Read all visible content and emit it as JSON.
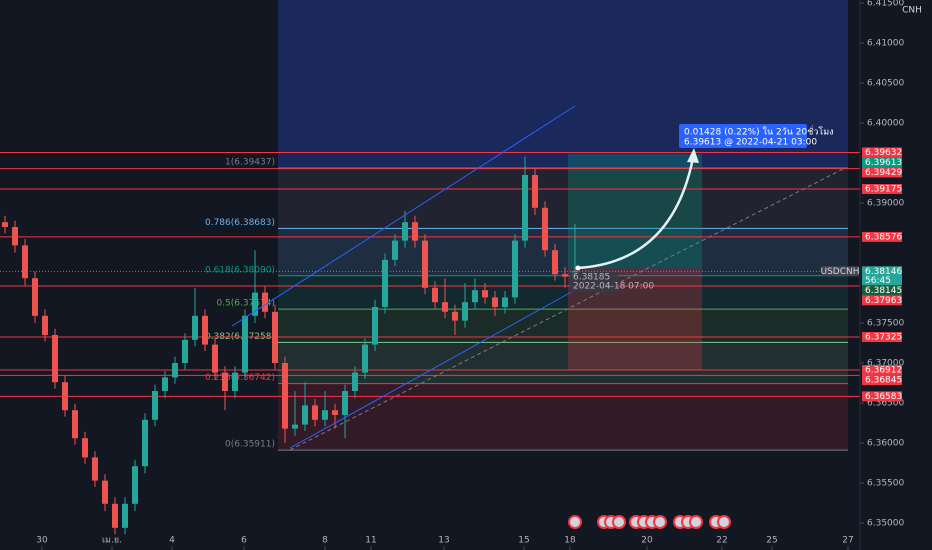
{
  "chart_data": {
    "type": "candlestick",
    "symbol": "USDCNH",
    "currency": "CNH",
    "countdown": "56:45",
    "last_price": 6.38146,
    "up_color": "#26a69a",
    "down_color": "#ef5350",
    "x": [
      0.5,
      1.5,
      2.5,
      3.5,
      4.5,
      5.5,
      6.5,
      7.5,
      8.5,
      9.5,
      10.5,
      11.5,
      12.5,
      13.5,
      14.5,
      15.5,
      16.5,
      17.5,
      18.5,
      19.5,
      20.5,
      21.5,
      22.5,
      23.5,
      24.5,
      25.5,
      26.5,
      27.5,
      28.5,
      29.5,
      30.5,
      31.5,
      32.5,
      33.5,
      34.5,
      35.5,
      36.5,
      37.5,
      38.5,
      39.5,
      40.5,
      41.5,
      42.5,
      43.5,
      44.5,
      45.5,
      46.5,
      47.5,
      48.5,
      49.5,
      50.5,
      51.5,
      52.5,
      53.5,
      54.5,
      55.5,
      56.5,
      57.5
    ],
    "open": [
      6.3876,
      6.387,
      6.3847,
      6.3806,
      6.3759,
      6.3735,
      6.3676,
      6.3641,
      6.3606,
      6.3582,
      6.3553,
      6.3524,
      6.3494,
      6.3524,
      6.3571,
      6.3629,
      6.3665,
      6.3682,
      6.37,
      6.3729,
      6.3759,
      6.3723,
      6.3688,
      6.3665,
      6.3688,
      6.3759,
      6.3788,
      6.3764,
      6.37,
      6.3618,
      6.3623,
      6.3647,
      6.3629,
      6.3641,
      6.3635,
      6.3665,
      6.3688,
      6.3723,
      6.377,
      6.3829,
      6.3853,
      6.3876,
      6.3853,
      6.3794,
      6.3776,
      6.3764,
      6.3753,
      6.3776,
      6.3791,
      6.3782,
      6.377,
      6.3782,
      6.3853,
      6.3935,
      6.3894,
      6.3841,
      6.3811,
      6.3808
    ],
    "high": [
      6.3884,
      6.3878,
      6.3855,
      6.3814,
      6.3767,
      6.3743,
      6.3684,
      6.3649,
      6.3614,
      6.359,
      6.3561,
      6.3532,
      6.3532,
      6.3579,
      6.3637,
      6.3673,
      6.369,
      6.3708,
      6.3737,
      6.3794,
      6.3767,
      6.3731,
      6.3696,
      6.3696,
      6.3767,
      6.3841,
      6.3796,
      6.3773,
      6.3708,
      6.3665,
      6.3676,
      6.3655,
      6.3665,
      6.3649,
      6.3673,
      6.3696,
      6.3731,
      6.3779,
      6.3837,
      6.3861,
      6.389,
      6.3884,
      6.3861,
      6.3802,
      6.3806,
      6.3773,
      6.38,
      6.3806,
      6.38,
      6.379,
      6.379,
      6.3861,
      6.3958,
      6.3943,
      6.3902,
      6.3849,
      6.382,
      6.3874
    ],
    "low": [
      6.3862,
      6.3838,
      6.3797,
      6.375,
      6.3727,
      6.3668,
      6.3633,
      6.3598,
      6.3574,
      6.3545,
      6.3515,
      6.3486,
      6.3486,
      6.3515,
      6.3562,
      6.3621,
      6.3656,
      6.3674,
      6.3692,
      6.3721,
      6.3715,
      6.368,
      6.3641,
      6.3656,
      6.368,
      6.375,
      6.3756,
      6.3692,
      6.36,
      6.3609,
      6.3615,
      6.3621,
      6.3621,
      6.3618,
      6.3606,
      6.3656,
      6.368,
      6.3715,
      6.3762,
      6.3821,
      6.3844,
      6.3844,
      6.3786,
      6.3768,
      6.3756,
      6.3735,
      6.3744,
      6.3768,
      6.3774,
      6.3759,
      6.3762,
      6.3774,
      6.3844,
      6.3885,
      6.3833,
      6.3803,
      6.3794,
      6.38
    ],
    "close": [
      6.387,
      6.3847,
      6.3806,
      6.3759,
      6.3735,
      6.3676,
      6.3641,
      6.3606,
      6.3582,
      6.3553,
      6.3524,
      6.3494,
      6.3524,
      6.3571,
      6.3629,
      6.3665,
      6.3682,
      6.37,
      6.3729,
      6.3759,
      6.3723,
      6.3688,
      6.3665,
      6.3688,
      6.3759,
      6.3788,
      6.3764,
      6.37,
      6.3618,
      6.3623,
      6.3647,
      6.3629,
      6.3641,
      6.3635,
      6.3665,
      6.3688,
      6.3723,
      6.377,
      6.3829,
      6.3853,
      6.3876,
      6.3853,
      6.3794,
      6.3776,
      6.3764,
      6.3753,
      6.3776,
      6.3791,
      6.3782,
      6.377,
      6.3782,
      6.3853,
      6.3935,
      6.3894,
      6.3841,
      6.3811,
      6.3808,
      6.3815
    ],
    "xlim": [
      0,
      86
    ],
    "xticks": [
      {
        "value": 4.2,
        "label": "30"
      },
      {
        "value": 11.2,
        "label": "เม.ย."
      },
      {
        "value": 17.2,
        "label": "4"
      },
      {
        "value": 24.4,
        "label": "6"
      },
      {
        "value": 32.5,
        "label": "8"
      },
      {
        "value": 37.1,
        "label": "11"
      },
      {
        "value": 44.4,
        "label": "13"
      },
      {
        "value": 52.4,
        "label": "15"
      },
      {
        "value": 57.0,
        "label": "18"
      },
      {
        "value": 64.7,
        "label": "20"
      },
      {
        "value": 72.2,
        "label": "22"
      },
      {
        "value": 77.2,
        "label": "25"
      },
      {
        "value": 84.8,
        "label": "27"
      }
    ],
    "ylim": [
      6.346625,
      6.415375
    ],
    "yticks": [
      {
        "value": 6.415,
        "label": "6.41500"
      },
      {
        "value": 6.41,
        "label": "6.41000"
      },
      {
        "value": 6.405,
        "label": "6.40500"
      },
      {
        "value": 6.4,
        "label": "6.40000"
      },
      {
        "value": 6.39,
        "label": "6.39000"
      },
      {
        "value": 6.375,
        "label": "6.37500"
      },
      {
        "value": 6.37,
        "label": "6.37000"
      },
      {
        "value": 6.365,
        "label": "6.36500"
      },
      {
        "value": 6.36,
        "label": "6.36000"
      },
      {
        "value": 6.355,
        "label": "6.35500"
      },
      {
        "value": 6.35,
        "label": "6.35000"
      }
    ],
    "line_color": "#f23645",
    "horizontal_lines": [
      6.39632,
      6.39429,
      6.39175,
      6.38576,
      6.37963,
      6.37325,
      6.36912,
      6.36845,
      6.36583
    ],
    "extra_labels": [
      {
        "value": 6.39613,
        "label": "6.39613",
        "color": "#089981"
      },
      {
        "value": 6.38145,
        "label": "6.38145",
        "color": "#1e5c3a"
      }
    ],
    "fib_levels": [
      {
        "value": 6.39437,
        "label": "1(6.39437)",
        "color": "#787b86"
      },
      {
        "value": 6.38683,
        "label": "0.786(6.38683)",
        "color": "#64b5f6"
      },
      {
        "value": 6.3809,
        "label": "0.618(6.38090)",
        "color": "#089981"
      },
      {
        "value": 6.37674,
        "label": "0.5(6.37674)",
        "color": "#4caf50"
      },
      {
        "value": 6.37258,
        "label": "0.382(6.37258)",
        "color": "#81c784"
      },
      {
        "value": 6.36742,
        "label": "0.236(6.36742)",
        "color": "#f23645"
      },
      {
        "value": 6.35911,
        "label": "0(6.35911)",
        "color": "#787b86"
      }
    ],
    "position": {
      "entry": 6.38185,
      "target": 6.39613,
      "stop": 6.36913,
      "entry_label": "6.38185",
      "entry_time": "2022-04-18 07:00",
      "target_text": "0.01428 (0.22%) ใน 2วัน 20ชั่วโมง",
      "target_detail": "6.39613 @ 2022-04-21 03:00"
    }
  }
}
